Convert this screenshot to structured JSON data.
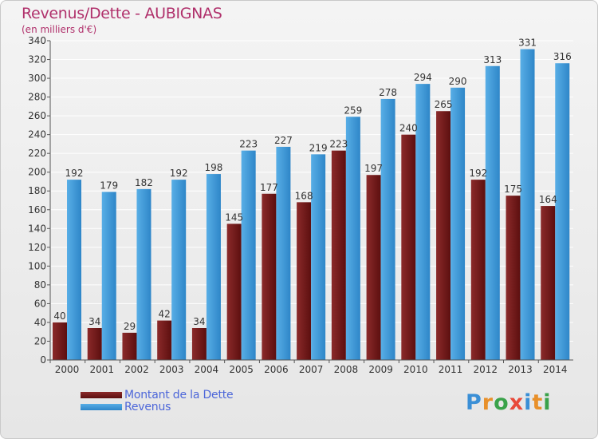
{
  "title": "Revenus/Dette - AUBIGNAS",
  "subtitle": "(en milliers d'€)",
  "logo": {
    "text": "Proxiti",
    "letter_colors": [
      "#3a8fd6",
      "#e8902a",
      "#3aa24a",
      "#e84a3a",
      "#3a8fd6",
      "#e8902a",
      "#3aa24a"
    ]
  },
  "colors": {
    "debt": "#8b2a2a",
    "debt_dark": "#5c0f0f",
    "revenue": "#58aee6",
    "revenue_dark": "#2e86c8",
    "grid": "#ffffff"
  },
  "chart_data": {
    "type": "bar",
    "title": "Revenus/Dette - AUBIGNAS",
    "ylabel": "(en milliers d'€)",
    "xlabel": "",
    "ylim": [
      0,
      340
    ],
    "ytick_step": 20,
    "grid": true,
    "legend_position": "bottom-left",
    "categories": [
      "2000",
      "2001",
      "2002",
      "2003",
      "2004",
      "2005",
      "2006",
      "2007",
      "2008",
      "2009",
      "2010",
      "2011",
      "2012",
      "2013",
      "2014"
    ],
    "series": [
      {
        "name": "Montant de la Dette",
        "values": [
          40,
          34,
          29,
          42,
          34,
          145,
          177,
          168,
          223,
          197,
          240,
          265,
          192,
          175,
          164
        ]
      },
      {
        "name": "Revenus",
        "values": [
          192,
          179,
          182,
          192,
          198,
          223,
          227,
          219,
          259,
          278,
          294,
          290,
          313,
          331,
          316
        ]
      }
    ]
  }
}
